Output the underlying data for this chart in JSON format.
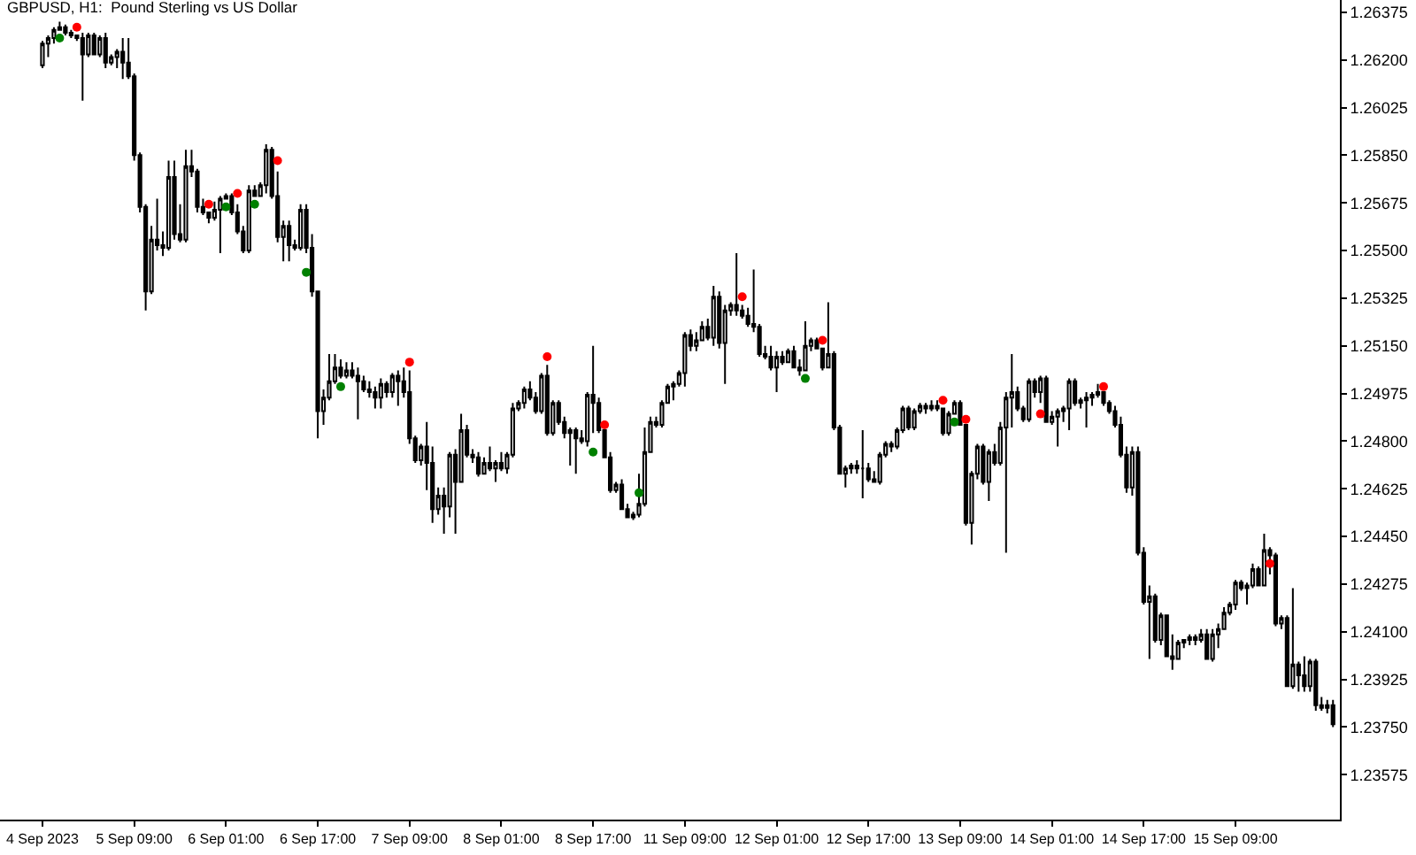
{
  "chart_data": {
    "type": "candlestick",
    "title": "GBPUSD, H1:  Pound Sterling vs US Dollar",
    "color": "#000000",
    "marker": "circle",
    "ylim": [
      1.2341,
      1.2642
    ],
    "yticks": [
      1.23575,
      {
        "value": 1.2375,
        "label": "1.23750"
      },
      1.23925,
      {
        "value": 1.241,
        "label": "1.24100"
      },
      1.24275,
      {
        "value": 1.2445,
        "label": "1.24450"
      },
      1.24625,
      {
        "value": 1.248,
        "label": "1.24800"
      },
      1.24975,
      {
        "value": 1.2515,
        "label": "1.25150"
      },
      1.25325,
      {
        "value": 1.255,
        "label": "1.25500"
      },
      1.25675,
      {
        "value": 1.2585,
        "label": "1.25850"
      },
      1.26025,
      {
        "value": 1.262,
        "label": "1.26200"
      },
      1.26375
    ],
    "categories": [
      "4 Sep 2023",
      null,
      null,
      null,
      null,
      null,
      null,
      null,
      null,
      null,
      null,
      null,
      null,
      null,
      null,
      null,
      "5 Sep 09:00",
      null,
      null,
      null,
      null,
      null,
      null,
      null,
      null,
      null,
      null,
      null,
      null,
      null,
      null,
      null,
      "6 Sep 01:00",
      null,
      null,
      null,
      null,
      null,
      null,
      null,
      null,
      null,
      null,
      null,
      null,
      null,
      null,
      null,
      "6 Sep 17:00",
      null,
      null,
      null,
      null,
      null,
      null,
      null,
      null,
      null,
      null,
      null,
      null,
      null,
      null,
      null,
      "7 Sep 09:00",
      null,
      null,
      null,
      null,
      null,
      null,
      null,
      null,
      null,
      null,
      null,
      null,
      null,
      null,
      null,
      "8 Sep 01:00",
      null,
      null,
      null,
      null,
      null,
      null,
      null,
      null,
      null,
      null,
      null,
      null,
      null,
      null,
      null,
      "8 Sep 17:00",
      null,
      null,
      null,
      null,
      null,
      null,
      null,
      null,
      null,
      null,
      null,
      null,
      null,
      null,
      null,
      "11 Sep 09:00",
      null,
      null,
      null,
      null,
      null,
      null,
      null,
      null,
      null,
      null,
      null,
      null,
      null,
      null,
      null,
      "12 Sep 01:00",
      null,
      null,
      null,
      null,
      null,
      null,
      null,
      null,
      null,
      null,
      null,
      null,
      null,
      null,
      null,
      "12 Sep 17:00",
      null,
      null,
      null,
      null,
      null,
      null,
      null,
      null,
      null,
      null,
      null,
      null,
      null,
      null,
      null,
      "13 Sep 09:00",
      null,
      null,
      null,
      null,
      null,
      null,
      null,
      null,
      null,
      null,
      null,
      null,
      null,
      null,
      null,
      "14 Sep 01:00",
      null,
      null,
      null,
      null,
      null,
      null,
      null,
      null,
      null,
      null,
      null,
      null,
      null,
      null,
      null,
      "14 Sep 17:00",
      null,
      null,
      null,
      null,
      null,
      null,
      null,
      null,
      null,
      null,
      null,
      null,
      null,
      null,
      null,
      "15 Sep 09:00",
      null,
      null,
      null,
      null,
      null,
      null,
      null,
      null,
      null,
      null,
      null,
      null,
      null,
      null,
      null,
      null,
      null
    ],
    "ohlc": [
      [
        1.2618,
        1.2627,
        1.2617,
        1.2626
      ],
      [
        1.2626,
        1.2629,
        1.2621,
        1.2628
      ],
      [
        1.2628,
        1.2632,
        1.2626,
        1.2631
      ],
      [
        1.2631,
        1.2634,
        1.2631,
        1.2632
      ],
      [
        1.2632,
        1.2633,
        1.2629,
        1.263
      ],
      [
        1.263,
        1.2631,
        1.2628,
        1.2629
      ],
      [
        1.2629,
        1.2629,
        1.2627,
        1.2628
      ],
      [
        1.2628,
        1.263,
        1.2605,
        1.2622
      ],
      [
        1.2622,
        1.263,
        1.2621,
        1.2629
      ],
      [
        1.2629,
        1.263,
        1.2622,
        1.2622
      ],
      [
        1.2622,
        1.2629,
        1.2621,
        1.2628
      ],
      [
        1.2628,
        1.263,
        1.2617,
        1.2619
      ],
      [
        1.2619,
        1.2622,
        1.2618,
        1.2621
      ],
      [
        1.2621,
        1.2624,
        1.2617,
        1.2623
      ],
      [
        1.2623,
        1.2628,
        1.2613,
        1.2619
      ],
      [
        1.2619,
        1.2628,
        1.2613,
        1.2614
      ],
      [
        1.2614,
        1.2615,
        1.2583,
        1.2585
      ],
      [
        1.2585,
        1.2586,
        1.2564,
        1.2566
      ],
      [
        1.2566,
        1.2567,
        1.2528,
        1.2535
      ],
      [
        1.2535,
        1.2559,
        1.2534,
        1.2554
      ],
      [
        1.2554,
        1.2569,
        1.255,
        1.2552
      ],
      [
        1.2552,
        1.2557,
        1.2548,
        1.2551
      ],
      [
        1.2551,
        1.2583,
        1.255,
        1.2577
      ],
      [
        1.2577,
        1.2583,
        1.2554,
        1.2556
      ],
      [
        1.2556,
        1.2567,
        1.2553,
        1.2554
      ],
      [
        1.2554,
        1.2587,
        1.2553,
        1.2581
      ],
      [
        1.2581,
        1.2587,
        1.2577,
        1.2579
      ],
      [
        1.2579,
        1.258,
        1.2564,
        1.2566
      ],
      [
        1.2566,
        1.2569,
        1.2563,
        1.2564
      ],
      [
        1.2564,
        1.2564,
        1.256,
        1.2562
      ],
      [
        1.2562,
        1.2568,
        1.2561,
        1.2565
      ],
      [
        1.2565,
        1.257,
        1.2549,
        1.2569
      ],
      [
        1.2569,
        1.2571,
        1.2569,
        1.257
      ],
      [
        1.257,
        1.2571,
        1.2563,
        1.2564
      ],
      [
        1.2564,
        1.2567,
        1.2556,
        1.2557
      ],
      [
        1.2557,
        1.2559,
        1.2549,
        1.255
      ],
      [
        1.255,
        1.2574,
        1.2549,
        1.2572
      ],
      [
        1.2572,
        1.2574,
        1.257,
        1.257
      ],
      [
        1.257,
        1.2575,
        1.257,
        1.2574
      ],
      [
        1.2574,
        1.2589,
        1.2571,
        1.2587
      ],
      [
        1.2587,
        1.2588,
        1.2569,
        1.257
      ],
      [
        1.257,
        1.2579,
        1.2553,
        1.2555
      ],
      [
        1.2555,
        1.2561,
        1.2546,
        1.2559
      ],
      [
        1.2559,
        1.2561,
        1.2546,
        1.2552
      ],
      [
        1.2552,
        1.2554,
        1.255,
        1.2551
      ],
      [
        1.2551,
        1.2567,
        1.255,
        1.2565
      ],
      [
        1.2565,
        1.2567,
        1.2549,
        1.2551
      ],
      [
        1.2551,
        1.2556,
        1.2533,
        1.2535
      ],
      [
        1.2535,
        1.2535,
        1.2481,
        1.2491
      ],
      [
        1.2491,
        1.2499,
        1.2486,
        1.2496
      ],
      [
        1.2496,
        1.2512,
        1.2495,
        1.2502
      ],
      [
        1.2502,
        1.2512,
        1.2501,
        1.2507
      ],
      [
        1.2507,
        1.251,
        1.2503,
        1.2504
      ],
      [
        1.2504,
        1.2509,
        1.2503,
        1.2506
      ],
      [
        1.2506,
        1.2509,
        1.2503,
        1.2504
      ],
      [
        1.2504,
        1.2507,
        1.2488,
        1.2502
      ],
      [
        1.2502,
        1.2504,
        1.2498,
        1.2499
      ],
      [
        1.2499,
        1.2502,
        1.2496,
        1.2498
      ],
      [
        1.2498,
        1.25,
        1.2492,
        1.2496
      ],
      [
        1.2496,
        1.2503,
        1.2492,
        1.2501
      ],
      [
        1.2501,
        1.2502,
        1.2496,
        1.2498
      ],
      [
        1.2498,
        1.2505,
        1.2496,
        1.2504
      ],
      [
        1.2504,
        1.2506,
        1.2493,
        1.2502
      ],
      [
        1.2502,
        1.2507,
        1.2496,
        1.2498
      ],
      [
        1.2498,
        1.2506,
        1.2479,
        1.2481
      ],
      [
        1.2481,
        1.2482,
        1.2472,
        1.2473
      ],
      [
        1.2473,
        1.2479,
        1.2471,
        1.2478
      ],
      [
        1.2478,
        1.2487,
        1.2462,
        1.2472
      ],
      [
        1.2472,
        1.2478,
        1.245,
        1.2455
      ],
      [
        1.2455,
        1.2463,
        1.2453,
        1.246
      ],
      [
        1.246,
        1.2463,
        1.2446,
        1.2456
      ],
      [
        1.2456,
        1.2476,
        1.2452,
        1.2475
      ],
      [
        1.2475,
        1.2477,
        1.2446,
        1.2465
      ],
      [
        1.2465,
        1.249,
        1.2465,
        1.2484
      ],
      [
        1.2484,
        1.2486,
        1.2474,
        1.2475
      ],
      [
        1.2475,
        1.2477,
        1.2472,
        1.2474
      ],
      [
        1.2474,
        1.2476,
        1.2467,
        1.2468
      ],
      [
        1.2468,
        1.2474,
        1.2468,
        1.2472
      ],
      [
        1.2472,
        1.2478,
        1.2469,
        1.247
      ],
      [
        1.247,
        1.2473,
        1.2465,
        1.2472
      ],
      [
        1.2472,
        1.2476,
        1.2469,
        1.247
      ],
      [
        1.247,
        1.2476,
        1.2468,
        1.2475
      ],
      [
        1.2475,
        1.2494,
        1.2474,
        1.2492
      ],
      [
        1.2492,
        1.2495,
        1.2491,
        1.2494
      ],
      [
        1.2494,
        1.25,
        1.2492,
        1.2499
      ],
      [
        1.2499,
        1.2502,
        1.2495,
        1.2496
      ],
      [
        1.2496,
        1.2498,
        1.249,
        1.2491
      ],
      [
        1.2491,
        1.2505,
        1.249,
        1.2504
      ],
      [
        1.2504,
        1.2508,
        1.2482,
        1.2483
      ],
      [
        1.2483,
        1.2495,
        1.2482,
        1.2494
      ],
      [
        1.2494,
        1.2495,
        1.2486,
        1.2487
      ],
      [
        1.2487,
        1.2489,
        1.2481,
        1.2483
      ],
      [
        1.2483,
        1.2485,
        1.2471,
        1.2484
      ],
      [
        1.2484,
        1.2485,
        1.2468,
        1.2481
      ],
      [
        1.2481,
        1.2484,
        1.2479,
        1.248
      ],
      [
        1.248,
        1.2498,
        1.2478,
        1.2497
      ],
      [
        1.2497,
        1.2515,
        1.2483,
        1.2494
      ],
      [
        1.2494,
        1.2496,
        1.2483,
        1.2484
      ],
      [
        1.2484,
        1.2484,
        1.2474,
        1.2474
      ],
      [
        1.2474,
        1.2476,
        1.2461,
        1.2462
      ],
      [
        1.2462,
        1.2465,
        1.2461,
        1.2464
      ],
      [
        1.2464,
        1.2466,
        1.2455,
        1.2455
      ],
      [
        1.2455,
        1.2457,
        1.2452,
        1.2452
      ],
      [
        1.2452,
        1.2454,
        1.2451,
        1.2453
      ],
      [
        1.2453,
        1.2468,
        1.2452,
        1.2457
      ],
      [
        1.2457,
        1.2485,
        1.2456,
        1.2476
      ],
      [
        1.2476,
        1.2489,
        1.2476,
        1.2487
      ],
      [
        1.2487,
        1.2489,
        1.2485,
        1.2486
      ],
      [
        1.2486,
        1.2495,
        1.2485,
        1.2494
      ],
      [
        1.2494,
        1.2501,
        1.2494,
        1.25
      ],
      [
        1.25,
        1.2502,
        1.2495,
        1.2501
      ],
      [
        1.2501,
        1.2506,
        1.25,
        1.2505
      ],
      [
        1.2505,
        1.252,
        1.25,
        1.2519
      ],
      [
        1.2519,
        1.2521,
        1.2513,
        1.2515
      ],
      [
        1.2515,
        1.252,
        1.2513,
        1.2517
      ],
      [
        1.2517,
        1.2524,
        1.2517,
        1.2522
      ],
      [
        1.2522,
        1.2525,
        1.2517,
        1.2518
      ],
      [
        1.2518,
        1.2537,
        1.2515,
        1.2533
      ],
      [
        1.2533,
        1.2535,
        1.2514,
        1.2516
      ],
      [
        1.2516,
        1.253,
        1.2501,
        1.2528
      ],
      [
        1.2528,
        1.2531,
        1.2526,
        1.253
      ],
      [
        1.253,
        1.2549,
        1.2526,
        1.2528
      ],
      [
        1.2528,
        1.253,
        1.2525,
        1.2526
      ],
      [
        1.2526,
        1.2529,
        1.2522,
        1.2523
      ],
      [
        1.2523,
        1.2543,
        1.252,
        1.2522
      ],
      [
        1.2522,
        1.2523,
        1.2511,
        1.2512
      ],
      [
        1.2512,
        1.2515,
        1.251,
        1.2511
      ],
      [
        1.2511,
        1.2515,
        1.2506,
        1.2507
      ],
      [
        1.2507,
        1.2513,
        1.2498,
        1.2511
      ],
      [
        1.2511,
        1.2513,
        1.2508,
        1.2509
      ],
      [
        1.2509,
        1.2514,
        1.2509,
        1.2513
      ],
      [
        1.2513,
        1.2515,
        1.2507,
        1.2507
      ],
      [
        1.2507,
        1.251,
        1.2504,
        1.2506
      ],
      [
        1.2506,
        1.2524,
        1.2506,
        1.2515
      ],
      [
        1.2515,
        1.2518,
        1.2513,
        1.2517
      ],
      [
        1.2517,
        1.2518,
        1.2514,
        1.2514
      ],
      [
        1.2514,
        1.2514,
        1.2506,
        1.2507
      ],
      [
        1.2507,
        1.2531,
        1.2507,
        1.2512
      ],
      [
        1.2512,
        1.2513,
        1.2484,
        1.2485
      ],
      [
        1.2485,
        1.2486,
        1.2468,
        1.2468
      ],
      [
        1.2468,
        1.2471,
        1.2463,
        1.247
      ],
      [
        1.247,
        1.2472,
        1.2468,
        1.2471
      ],
      [
        1.2471,
        1.2473,
        1.2468,
        1.247
      ],
      [
        1.247,
        1.2484,
        1.2459,
        1.247
      ],
      [
        1.247,
        1.2472,
        1.2465,
        1.2466
      ],
      [
        1.2466,
        1.2469,
        1.2465,
        1.2465
      ],
      [
        1.2465,
        1.2476,
        1.2464,
        1.2475
      ],
      [
        1.2475,
        1.248,
        1.2474,
        1.2479
      ],
      [
        1.2479,
        1.248,
        1.2476,
        1.2478
      ],
      [
        1.2478,
        1.2485,
        1.2477,
        1.2484
      ],
      [
        1.2484,
        1.2493,
        1.2483,
        1.2492
      ],
      [
        1.2492,
        1.2493,
        1.2484,
        1.2485
      ],
      [
        1.2485,
        1.2492,
        1.2484,
        1.2491
      ],
      [
        1.2491,
        1.2494,
        1.249,
        1.2493
      ],
      [
        1.2493,
        1.2494,
        1.249,
        1.2492
      ],
      [
        1.2492,
        1.2495,
        1.2491,
        1.2493
      ],
      [
        1.2493,
        1.2495,
        1.2491,
        1.2492
      ],
      [
        1.2492,
        1.2492,
        1.2482,
        1.2483
      ],
      [
        1.2483,
        1.2491,
        1.2482,
        1.249
      ],
      [
        1.249,
        1.2495,
        1.249,
        1.2494
      ],
      [
        1.2494,
        1.2495,
        1.2486,
        1.2486
      ],
      [
        1.2486,
        1.2486,
        1.2449,
        1.245
      ],
      [
        1.245,
        1.2469,
        1.2442,
        1.2468
      ],
      [
        1.2468,
        1.2479,
        1.2466,
        1.2478
      ],
      [
        1.2478,
        1.2479,
        1.2464,
        1.2465
      ],
      [
        1.2465,
        1.2477,
        1.2458,
        1.2476
      ],
      [
        1.2476,
        1.2479,
        1.2471,
        1.2472
      ],
      [
        1.2472,
        1.2487,
        1.2471,
        1.2485
      ],
      [
        1.2485,
        1.2498,
        1.2439,
        1.2496
      ],
      [
        1.2496,
        1.2512,
        1.2485,
        1.2498
      ],
      [
        1.2498,
        1.25,
        1.2491,
        1.2492
      ],
      [
        1.2492,
        1.2493,
        1.2487,
        1.2488
      ],
      [
        1.2488,
        1.2503,
        1.2487,
        1.2502
      ],
      [
        1.2502,
        1.2503,
        1.2496,
        1.2498
      ],
      [
        1.2498,
        1.2504,
        1.2494,
        1.2503
      ],
      [
        1.2503,
        1.2504,
        1.2487,
        1.2487
      ],
      [
        1.2487,
        1.2491,
        1.2486,
        1.2489
      ],
      [
        1.2489,
        1.2492,
        1.2478,
        1.2491
      ],
      [
        1.2491,
        1.2493,
        1.2487,
        1.2492
      ],
      [
        1.2492,
        1.2503,
        1.2484,
        1.2502
      ],
      [
        1.2502,
        1.2503,
        1.2493,
        1.2494
      ],
      [
        1.2494,
        1.2496,
        1.2492,
        1.2495
      ],
      [
        1.2495,
        1.2498,
        1.2485,
        1.2496
      ],
      [
        1.2496,
        1.2498,
        1.2493,
        1.2497
      ],
      [
        1.2497,
        1.2501,
        1.2496,
        1.2498
      ],
      [
        1.2498,
        1.2498,
        1.2493,
        1.2494
      ],
      [
        1.2494,
        1.2495,
        1.249,
        1.2491
      ],
      [
        1.2491,
        1.2493,
        1.2485,
        1.2486
      ],
      [
        1.2486,
        1.2489,
        1.2474,
        1.2475
      ],
      [
        1.2475,
        1.2478,
        1.2461,
        1.2463
      ],
      [
        1.2463,
        1.2478,
        1.246,
        1.2476
      ],
      [
        1.2476,
        1.2478,
        1.2438,
        1.2439
      ],
      [
        1.2439,
        1.2441,
        1.242,
        1.2421
      ],
      [
        1.2421,
        1.2427,
        1.24,
        1.2423
      ],
      [
        1.2423,
        1.2424,
        1.2406,
        1.2407
      ],
      [
        1.2407,
        1.2417,
        1.2405,
        1.2416
      ],
      [
        1.2416,
        1.2416,
        1.2401,
        1.2401
      ],
      [
        1.2401,
        1.2409,
        1.2396,
        1.24
      ],
      [
        1.24,
        1.2407,
        1.24,
        1.2406
      ],
      [
        1.2406,
        1.2407,
        1.2404,
        1.2407
      ],
      [
        1.2407,
        1.2409,
        1.2405,
        1.2408
      ],
      [
        1.2408,
        1.2409,
        1.2405,
        1.2407
      ],
      [
        1.2407,
        1.2411,
        1.2406,
        1.2409
      ],
      [
        1.2409,
        1.2411,
        1.24,
        1.24
      ],
      [
        1.24,
        1.2411,
        1.2399,
        1.2409
      ],
      [
        1.2409,
        1.2413,
        1.2404,
        1.2411
      ],
      [
        1.2411,
        1.2419,
        1.2411,
        1.2417
      ],
      [
        1.2417,
        1.2421,
        1.2416,
        1.242
      ],
      [
        1.242,
        1.2429,
        1.2418,
        1.2428
      ],
      [
        1.2428,
        1.2429,
        1.2425,
        1.2426
      ],
      [
        1.2426,
        1.2428,
        1.242,
        1.2427
      ],
      [
        1.2427,
        1.2435,
        1.2426,
        1.2433
      ],
      [
        1.2433,
        1.2434,
        1.2427,
        1.2427
      ],
      [
        1.2427,
        1.2446,
        1.2427,
        1.244
      ],
      [
        1.244,
        1.2441,
        1.2431,
        1.2438
      ],
      [
        1.2438,
        1.2439,
        1.2412,
        1.2413
      ],
      [
        1.2413,
        1.2416,
        1.2411,
        1.2415
      ],
      [
        1.2415,
        1.2416,
        1.239,
        1.239
      ],
      [
        1.239,
        1.2426,
        1.2389,
        1.2398
      ],
      [
        1.2398,
        1.2399,
        1.2388,
        1.2394
      ],
      [
        1.2394,
        1.2401,
        1.2388,
        1.239
      ],
      [
        1.239,
        1.24,
        1.2388,
        1.2399
      ],
      [
        1.2399,
        1.24,
        1.2381,
        1.2383
      ],
      [
        1.2383,
        1.2386,
        1.2381,
        1.2382
      ],
      [
        1.2382,
        1.2385,
        1.238,
        1.2383
      ],
      [
        1.2383,
        1.2385,
        1.2375,
        1.2376
      ]
    ],
    "series": [
      {
        "type": "scatter",
        "color": "#ff0000",
        "values": [
          null,
          null,
          null,
          null,
          null,
          null,
          1.2632,
          null,
          null,
          null,
          null,
          null,
          null,
          null,
          null,
          null,
          null,
          null,
          null,
          null,
          null,
          null,
          null,
          null,
          null,
          null,
          null,
          null,
          null,
          1.2567,
          null,
          null,
          null,
          null,
          1.2571,
          null,
          null,
          null,
          null,
          null,
          null,
          1.2583,
          null,
          null,
          null,
          null,
          null,
          null,
          null,
          null,
          null,
          null,
          null,
          null,
          null,
          null,
          null,
          null,
          null,
          null,
          null,
          null,
          null,
          null,
          1.2509,
          null,
          null,
          null,
          null,
          null,
          null,
          null,
          null,
          null,
          null,
          null,
          null,
          null,
          null,
          null,
          null,
          null,
          null,
          null,
          null,
          null,
          null,
          null,
          1.2511,
          null,
          null,
          null,
          null,
          null,
          null,
          null,
          null,
          null,
          1.2486,
          null,
          null,
          null,
          null,
          null,
          null,
          null,
          null,
          null,
          null,
          null,
          null,
          null,
          null,
          null,
          null,
          null,
          null,
          null,
          null,
          null,
          null,
          null,
          1.2533,
          null,
          null,
          null,
          null,
          null,
          null,
          null,
          null,
          null,
          null,
          null,
          null,
          null,
          1.2517,
          null,
          null,
          null,
          null,
          null,
          null,
          null,
          null,
          null,
          null,
          null,
          null,
          null,
          null,
          null,
          null,
          null,
          null,
          null,
          null,
          1.2495,
          null,
          null,
          null,
          1.2488,
          null,
          null,
          null,
          null,
          null,
          null,
          null,
          null,
          null,
          null,
          null,
          null,
          1.249,
          null,
          null,
          null,
          null,
          null,
          null,
          null,
          null,
          null,
          null,
          1.25,
          null,
          null,
          null,
          null,
          null,
          null,
          null,
          null,
          null,
          null,
          null,
          null,
          null,
          null,
          null,
          null,
          null,
          null,
          null,
          null,
          null,
          null,
          null,
          null,
          null,
          null,
          null,
          null,
          1.2435,
          null,
          null,
          null,
          null,
          null,
          null,
          null,
          null,
          null,
          null,
          null
        ]
      },
      {
        "type": "scatter",
        "color": "#008000",
        "values": [
          null,
          null,
          null,
          1.2628,
          null,
          null,
          null,
          null,
          null,
          null,
          null,
          null,
          null,
          null,
          null,
          null,
          null,
          null,
          null,
          null,
          null,
          null,
          null,
          null,
          null,
          null,
          null,
          null,
          null,
          null,
          null,
          null,
          1.2566,
          null,
          null,
          null,
          null,
          1.2567,
          null,
          null,
          null,
          null,
          null,
          null,
          null,
          null,
          1.2542,
          null,
          null,
          null,
          null,
          null,
          1.25,
          null,
          null,
          null,
          null,
          null,
          null,
          null,
          null,
          null,
          null,
          null,
          null,
          null,
          null,
          null,
          null,
          null,
          null,
          null,
          null,
          null,
          null,
          null,
          null,
          null,
          null,
          null,
          null,
          null,
          null,
          null,
          null,
          null,
          null,
          null,
          null,
          null,
          null,
          null,
          null,
          null,
          null,
          null,
          1.2476,
          null,
          null,
          null,
          null,
          null,
          null,
          null,
          1.2461,
          null,
          null,
          null,
          null,
          null,
          null,
          null,
          null,
          null,
          null,
          null,
          null,
          null,
          null,
          null,
          null,
          null,
          null,
          null,
          null,
          null,
          null,
          null,
          null,
          null,
          null,
          null,
          null,
          1.2503,
          null,
          null,
          null,
          null,
          null,
          null,
          null,
          null,
          null,
          null,
          null,
          null,
          null,
          null,
          null,
          null,
          null,
          null,
          null,
          null,
          null,
          null,
          null,
          null,
          null,
          1.2487,
          null,
          null,
          null,
          null,
          null,
          null,
          null,
          null,
          null,
          null,
          null,
          null,
          null,
          null,
          null,
          null,
          null,
          null,
          null,
          null,
          null,
          null,
          null,
          null,
          null,
          null,
          null,
          null,
          null,
          null,
          null,
          null,
          null,
          null,
          null,
          null,
          null,
          null,
          null,
          null,
          null,
          null,
          null,
          null,
          null,
          null,
          null,
          null,
          null,
          null,
          null,
          null,
          null,
          null,
          null,
          null,
          null,
          null,
          null,
          null,
          null,
          null,
          null,
          null,
          null,
          null
        ]
      }
    ]
  }
}
